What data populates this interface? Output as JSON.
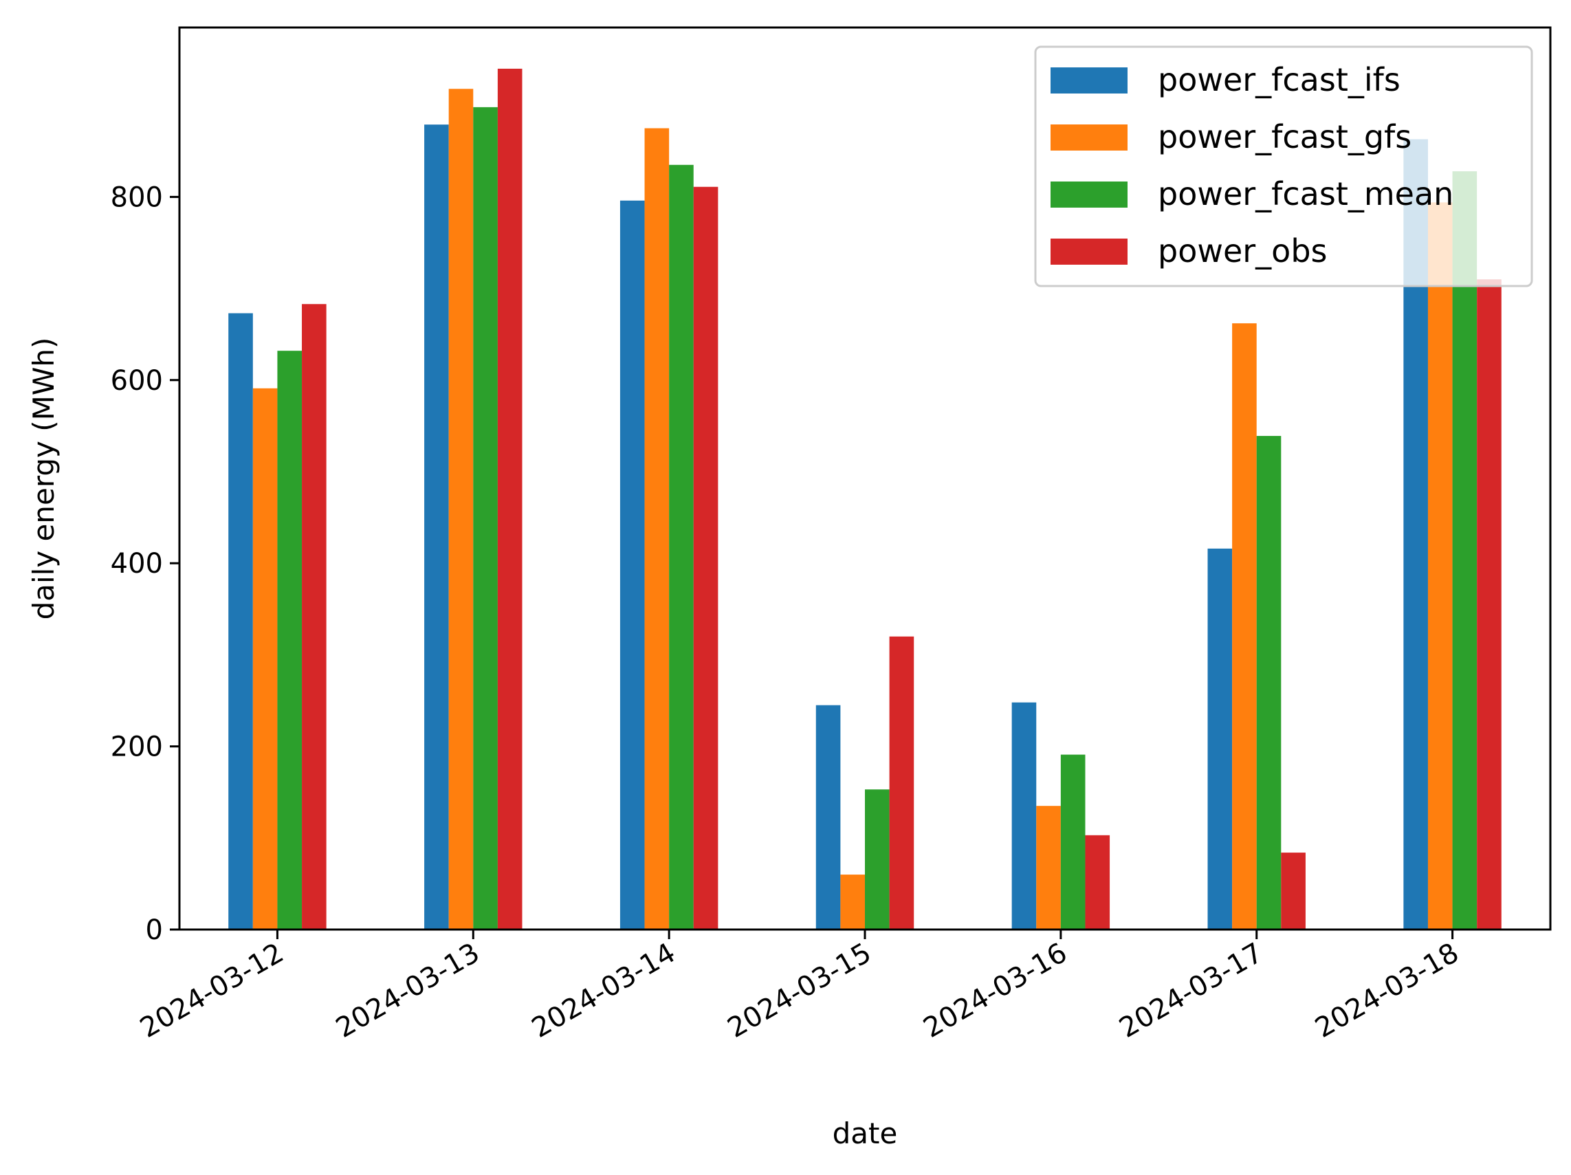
{
  "chart_data": {
    "type": "bar",
    "categories": [
      "2024-03-12",
      "2024-03-13",
      "2024-03-14",
      "2024-03-15",
      "2024-03-16",
      "2024-03-17",
      "2024-03-18"
    ],
    "series": [
      {
        "name": "power_fcast_ifs",
        "color": "#1f77b4",
        "values": [
          673,
          879,
          796,
          245,
          248,
          416,
          863
        ]
      },
      {
        "name": "power_fcast_gfs",
        "color": "#ff7f0e",
        "values": [
          591,
          918,
          875,
          60,
          135,
          662,
          794
        ]
      },
      {
        "name": "power_fcast_mean",
        "color": "#2ca02c",
        "values": [
          632,
          898,
          835,
          153,
          191,
          539,
          828
        ]
      },
      {
        "name": "power_obs",
        "color": "#d62728",
        "values": [
          683,
          940,
          811,
          320,
          103,
          84,
          710
        ]
      }
    ],
    "xlabel": "date",
    "ylabel": "daily energy (MWh)",
    "ylim": [
      0,
      985
    ],
    "yticks": [
      0,
      200,
      400,
      600,
      800
    ],
    "grid": false,
    "legend": "top-right"
  }
}
